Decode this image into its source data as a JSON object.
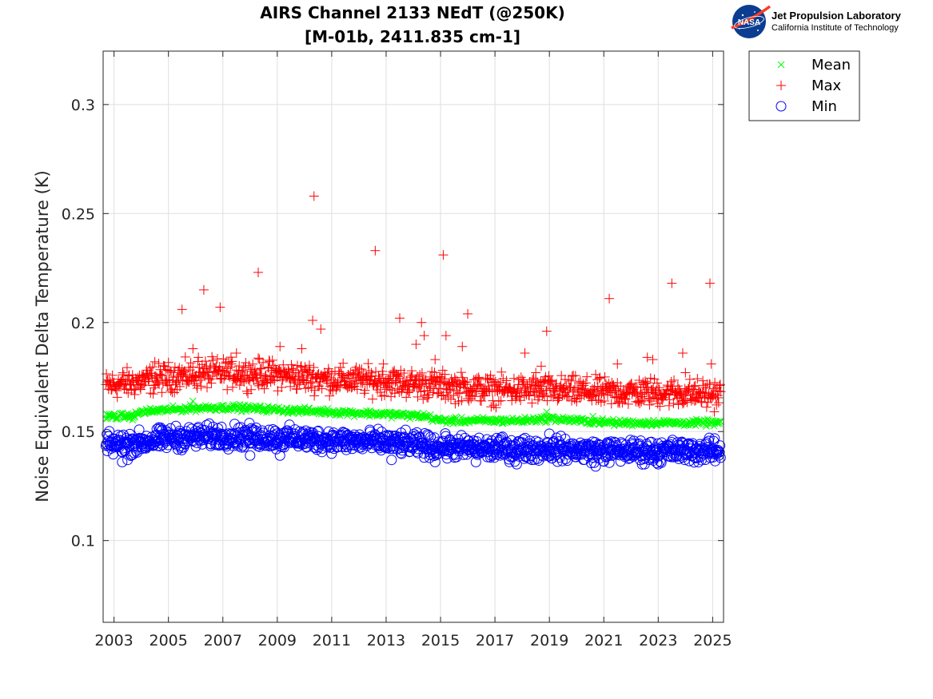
{
  "logo": {
    "agency": "NASA",
    "name": "Jet Propulsion Laboratory",
    "subtitle": "California Institute of Technology"
  },
  "chart_data": {
    "type": "scatter",
    "title": "AIRS Channel 2133 NEdT (@250K)",
    "subtitle": "[M-01b, 2411.835 cm-1]",
    "xlabel": "",
    "ylabel": "Noise Equivalent Delta Temperature (K)",
    "xlim": [
      2002.6,
      2025.4
    ],
    "ylim": [
      0.0625,
      0.3245
    ],
    "x_ticks": [
      "2003",
      "2005",
      "2007",
      "2009",
      "2011",
      "2013",
      "2015",
      "2017",
      "2019",
      "2021",
      "2023",
      "2025"
    ],
    "y_ticks": [
      "0.1",
      "0.15",
      "0.2",
      "0.25",
      "0.3"
    ],
    "grid": true,
    "legend_position": "outside-top-right",
    "colors": {
      "Mean": "#00ff00",
      "Max": "#ff0000",
      "Min": "#0000ff"
    },
    "series": [
      {
        "name": "Mean",
        "marker": "x",
        "trend": [
          [
            2002.7,
            0.157
          ],
          [
            2003.7,
            0.157
          ],
          [
            2004.0,
            0.159
          ],
          [
            2005.0,
            0.16
          ],
          [
            2006.5,
            0.161
          ],
          [
            2007.5,
            0.161
          ],
          [
            2009.0,
            0.16
          ],
          [
            2011.0,
            0.159
          ],
          [
            2013.0,
            0.158
          ],
          [
            2014.5,
            0.157
          ],
          [
            2015.0,
            0.155
          ],
          [
            2018.0,
            0.155
          ],
          [
            2019.0,
            0.156
          ],
          [
            2020.0,
            0.155
          ],
          [
            2021.5,
            0.154
          ],
          [
            2025.3,
            0.154
          ]
        ],
        "outliers": [
          [
            2005.9,
            0.164
          ],
          [
            2018.9,
            0.159
          ],
          [
            2020.6,
            0.157
          ]
        ]
      },
      {
        "name": "Max",
        "marker": "+",
        "trend": [
          [
            2002.7,
            0.171
          ],
          [
            2004.0,
            0.173
          ],
          [
            2005.0,
            0.175
          ],
          [
            2007.0,
            0.177
          ],
          [
            2009.0,
            0.176
          ],
          [
            2011.0,
            0.174
          ],
          [
            2013.0,
            0.173
          ],
          [
            2015.0,
            0.171
          ],
          [
            2017.0,
            0.169
          ],
          [
            2019.0,
            0.169
          ],
          [
            2021.0,
            0.168
          ],
          [
            2023.0,
            0.168
          ],
          [
            2025.3,
            0.167
          ]
        ],
        "outliers": [
          [
            2004.5,
            0.182
          ],
          [
            2005.5,
            0.206
          ],
          [
            2005.9,
            0.188
          ],
          [
            2006.1,
            0.184
          ],
          [
            2006.3,
            0.215
          ],
          [
            2006.9,
            0.207
          ],
          [
            2007.5,
            0.186
          ],
          [
            2008.3,
            0.223
          ],
          [
            2009.1,
            0.189
          ],
          [
            2009.9,
            0.188
          ],
          [
            2010.3,
            0.201
          ],
          [
            2010.35,
            0.258
          ],
          [
            2010.6,
            0.197
          ],
          [
            2012.6,
            0.233
          ],
          [
            2012.9,
            0.181
          ],
          [
            2013.5,
            0.202
          ],
          [
            2014.1,
            0.19
          ],
          [
            2014.3,
            0.2
          ],
          [
            2014.4,
            0.194
          ],
          [
            2014.8,
            0.183
          ],
          [
            2015.1,
            0.231
          ],
          [
            2015.2,
            0.194
          ],
          [
            2015.8,
            0.189
          ],
          [
            2016.0,
            0.204
          ],
          [
            2018.1,
            0.186
          ],
          [
            2018.5,
            0.177
          ],
          [
            2018.7,
            0.18
          ],
          [
            2018.9,
            0.196
          ],
          [
            2021.2,
            0.211
          ],
          [
            2021.5,
            0.181
          ],
          [
            2022.6,
            0.184
          ],
          [
            2022.8,
            0.183
          ],
          [
            2023.5,
            0.218
          ],
          [
            2023.9,
            0.186
          ],
          [
            2024.0,
            0.177
          ],
          [
            2024.9,
            0.218
          ],
          [
            2024.95,
            0.181
          ]
        ]
      },
      {
        "name": "Min",
        "marker": "o",
        "trend": [
          [
            2002.7,
            0.144
          ],
          [
            2004.0,
            0.145
          ],
          [
            2005.0,
            0.147
          ],
          [
            2007.0,
            0.148
          ],
          [
            2009.0,
            0.147
          ],
          [
            2011.0,
            0.146
          ],
          [
            2013.0,
            0.145
          ],
          [
            2015.0,
            0.143
          ],
          [
            2017.0,
            0.142
          ],
          [
            2019.0,
            0.142
          ],
          [
            2021.0,
            0.141
          ],
          [
            2023.0,
            0.141
          ],
          [
            2025.3,
            0.141
          ]
        ],
        "outliers": [
          [
            2003.3,
            0.136
          ],
          [
            2003.5,
            0.137
          ],
          [
            2008.0,
            0.139
          ],
          [
            2009.1,
            0.139
          ],
          [
            2013.2,
            0.137
          ],
          [
            2014.8,
            0.136
          ],
          [
            2016.3,
            0.136
          ],
          [
            2017.8,
            0.135
          ],
          [
            2019.0,
            0.149
          ],
          [
            2020.7,
            0.134
          ],
          [
            2022.5,
            0.135
          ],
          [
            2023.0,
            0.135
          ]
        ]
      }
    ]
  }
}
